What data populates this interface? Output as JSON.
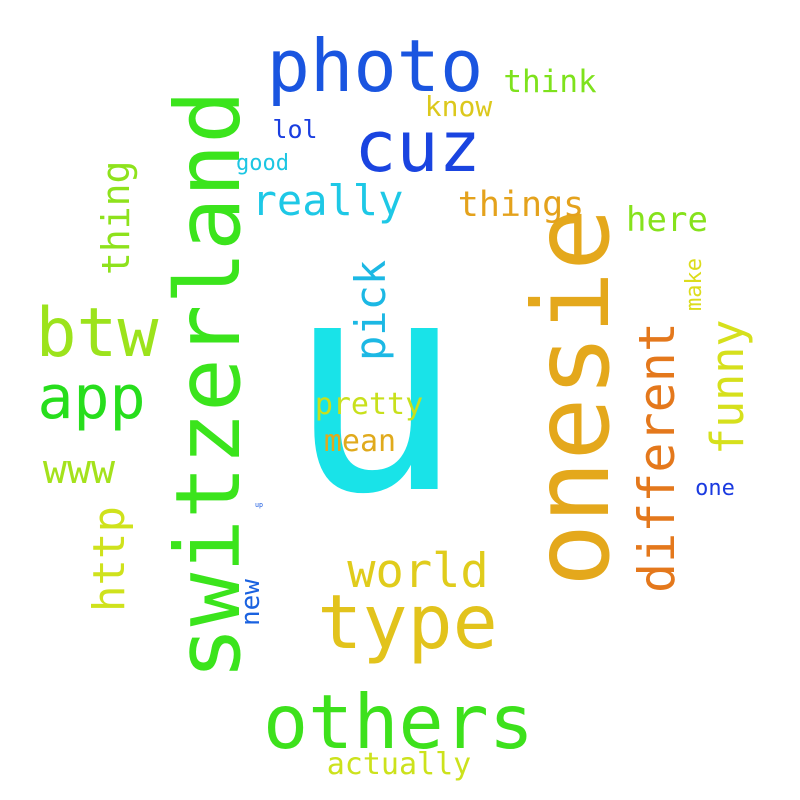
{
  "words": [
    {
      "id": "u",
      "text": "u",
      "color": "#19e3e8"
    },
    {
      "id": "onesie",
      "text": "onesie",
      "color": "#e4a81c"
    },
    {
      "id": "switzerland",
      "text": "switzerland",
      "color": "#3be41c"
    },
    {
      "id": "photo",
      "text": "photo",
      "color": "#1a55e0"
    },
    {
      "id": "cuz",
      "text": "cuz",
      "color": "#1a44e0"
    },
    {
      "id": "others",
      "text": "others",
      "color": "#3de11c"
    },
    {
      "id": "type",
      "text": "type",
      "color": "#e2c31c"
    },
    {
      "id": "app",
      "text": "app",
      "color": "#27de1c"
    },
    {
      "id": "btw",
      "text": "btw",
      "color": "#9ce31c"
    },
    {
      "id": "different",
      "text": "different",
      "color": "#e4781c"
    },
    {
      "id": "www",
      "text": "www",
      "color": "#a4e21c"
    },
    {
      "id": "pick",
      "text": "pick",
      "color": "#1cb8e4"
    },
    {
      "id": "world",
      "text": "world",
      "color": "#e0cc1c"
    },
    {
      "id": "funny",
      "text": "funny",
      "color": "#d6e01c"
    },
    {
      "id": "http",
      "text": "http",
      "color": "#cfe21c"
    },
    {
      "id": "really",
      "text": "really",
      "color": "#1ec8e6"
    },
    {
      "id": "thing",
      "text": "thing",
      "color": "#8ee21c"
    },
    {
      "id": "things",
      "text": "things",
      "color": "#e4a21c"
    },
    {
      "id": "here",
      "text": "here",
      "color": "#86e21c"
    },
    {
      "id": "think",
      "text": "think",
      "color": "#7ee21c"
    },
    {
      "id": "know",
      "text": "know",
      "color": "#dcc81c"
    },
    {
      "id": "pretty",
      "text": "pretty",
      "color": "#c8e01c"
    },
    {
      "id": "mean",
      "text": "mean",
      "color": "#e0aa1c"
    },
    {
      "id": "actually",
      "text": "actually",
      "color": "#cce21c"
    },
    {
      "id": "new",
      "text": "new",
      "color": "#1a62e0"
    },
    {
      "id": "one",
      "text": "one",
      "color": "#1a3ae0"
    },
    {
      "id": "lol",
      "text": "lol",
      "color": "#1a3ee0"
    },
    {
      "id": "make",
      "text": "make",
      "color": "#dcdc1c"
    },
    {
      "id": "good",
      "text": "good",
      "color": "#1cc6e2"
    },
    {
      "id": "up",
      "text": "up",
      "color": "#1a5ae0"
    }
  ]
}
